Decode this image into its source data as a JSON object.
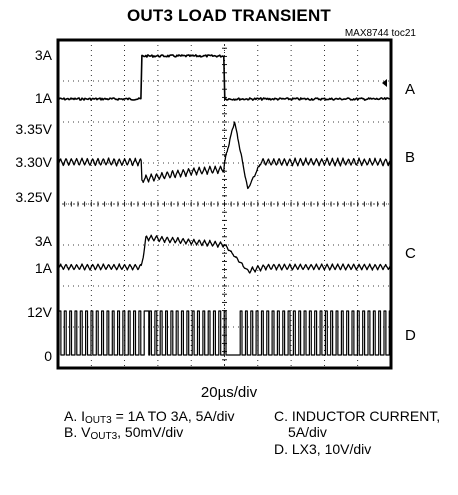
{
  "chart_data": {
    "type": "line",
    "title": "OUT3 LOAD TRANSIENT",
    "doc_id": "MAX8744 toc21",
    "x_scale": "20µs/div",
    "x_divisions": 10,
    "y_divisions": 8,
    "grid": true,
    "trace_color": "#000000",
    "time_axis_us": [
      0,
      200
    ],
    "step": {
      "t_up_us": 50,
      "t_down_us": 100
    },
    "traces": [
      {
        "id": "A",
        "tick_labels": [
          {
            "text": "3A",
            "value": 3
          },
          {
            "text": "1A",
            "value": 1
          }
        ],
        "low_value": 1,
        "high_value": 3,
        "unit": "A"
      },
      {
        "id": "B",
        "tick_labels": [
          {
            "text": "3.35V",
            "value": 3.35
          },
          {
            "text": "3.30V",
            "value": 3.3
          },
          {
            "text": "3.25V",
            "value": 3.25
          }
        ],
        "nominal": 3.3,
        "ripple": 0.01,
        "droop_min": 3.275,
        "overshoot_peak": 3.36,
        "undershoot_min": 3.26,
        "unit": "V"
      },
      {
        "id": "C",
        "tick_labels": [
          {
            "text": "3A",
            "value": 3
          },
          {
            "text": "1A",
            "value": 1
          }
        ],
        "low_value": 1,
        "high_value": 3,
        "ripple": 0.4,
        "unit": "A"
      },
      {
        "id": "D",
        "tick_labels": [
          {
            "text": "12V",
            "value": 12
          },
          {
            "text": "0",
            "value": 0
          }
        ],
        "low_value": 0,
        "high_value": 12,
        "unit": "V"
      }
    ]
  },
  "legend": {
    "a_prefix": "A. I",
    "a_sub": "OUT3",
    "a_suffix": " = 1A TO 3A, 5A/div",
    "b_prefix": "B. V",
    "b_sub": "OUT3",
    "b_suffix": ", 50mV/div",
    "c_line1": "C. INDUCTOR CURRENT,",
    "c_line2": "5A/div",
    "d_line1": "D. LX3, 10V/div"
  }
}
